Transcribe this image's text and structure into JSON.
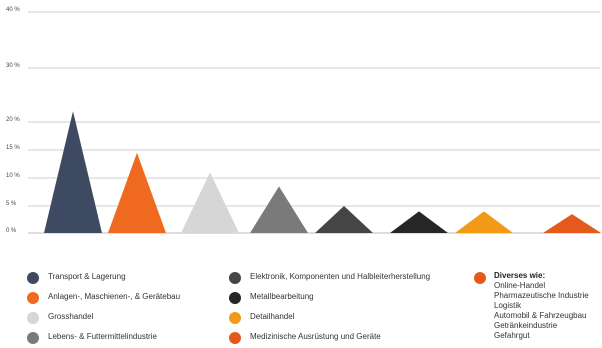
{
  "chart_data": {
    "type": "bar",
    "bar_shape": "triangle",
    "y_ticks": [
      "0 %",
      "5 %",
      "10 %",
      "15 %",
      "20 %",
      "30 %",
      "40 %"
    ],
    "ylim": [
      0,
      40
    ],
    "grid": true,
    "categories": [
      "Transport & Lagerung",
      "Anlagen-, Maschienen-, & Gerätebau",
      "Grosshandel",
      "Lebens- & Futtermittelindustrie",
      "Elektronik, Komponenten und Halbleiterherstellung",
      "Metallbearbeitung",
      "Detailhandel",
      "Medizinische Ausrüstung und Geräte",
      "Diverses wie:"
    ],
    "values": [
      22,
      14.5,
      11,
      8.5,
      5,
      4,
      4,
      3.5,
      4
    ],
    "colors": [
      "#3d4a62",
      "#ef6a1e",
      "#d6d6d6",
      "#7a7a7a",
      "#454545",
      "#262626",
      "#f29a16",
      "#e55a1c",
      "#e55a1c"
    ],
    "legend_position": "bottom"
  },
  "legend": {
    "items": [
      {
        "label": "Transport & Lagerung",
        "color": "#3d4a62"
      },
      {
        "label": "Anlagen-, Maschienen-, & Gerätebau",
        "color": "#ef6a1e"
      },
      {
        "label": "Grosshandel",
        "color": "#d6d6d6"
      },
      {
        "label": "Lebens- & Futtermittelindustrie",
        "color": "#7a7a7a"
      },
      {
        "label": "Elektronik, Komponenten und Halbleiterherstellung",
        "color": "#454545"
      },
      {
        "label": "Metallbearbeitung",
        "color": "#262626"
      },
      {
        "label": "Detailhandel",
        "color": "#f29a16"
      },
      {
        "label": "Medizinische Ausrüstung und Geräte",
        "color": "#e55a1c"
      }
    ],
    "misc": {
      "heading": "Diverses wie:",
      "color": "#e55a1c",
      "lines": [
        "Online-Handel",
        "Pharmazeutische Industrie",
        "Logistik",
        "Automobil & Fahrzeugbau",
        "Getränkeindustrie",
        "Gefahrgut"
      ]
    }
  }
}
